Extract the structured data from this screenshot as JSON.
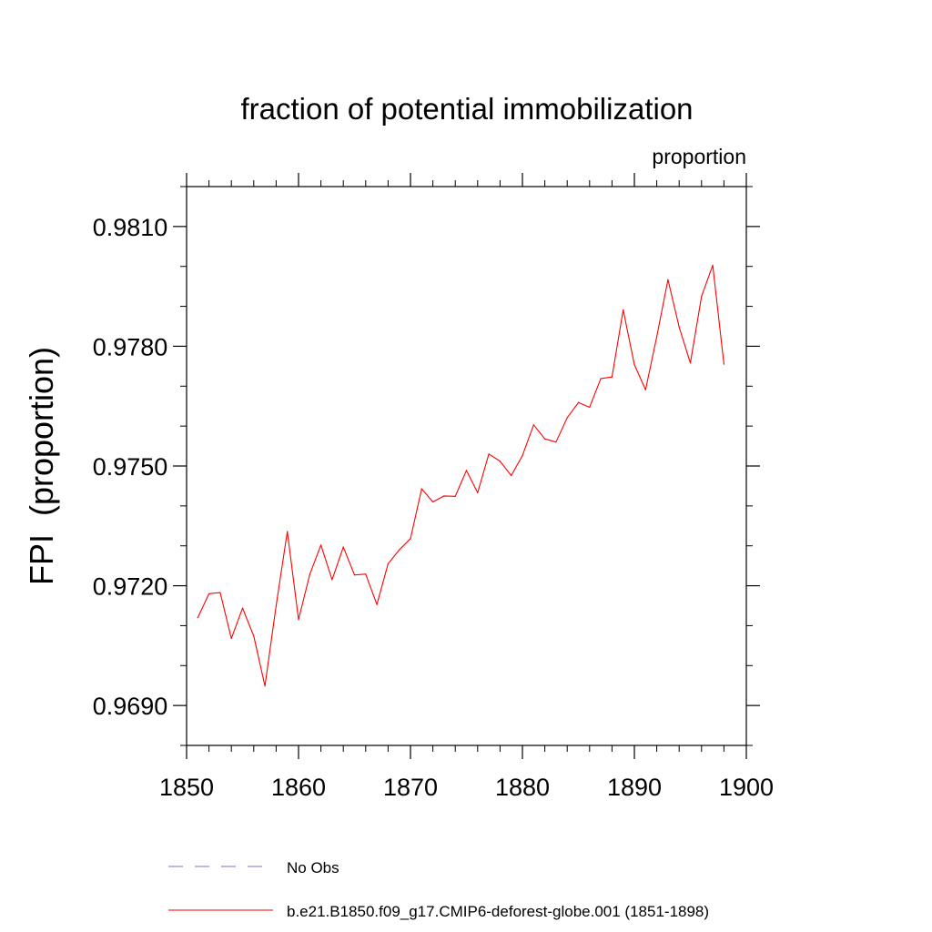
{
  "chart_data": {
    "type": "line",
    "title": "fraction of potential immobilization",
    "units_label": "proportion",
    "ylabel": "FPI  (proportion)",
    "xlabel": "",
    "xlim": [
      1850,
      1900
    ],
    "ylim": [
      0.968,
      0.982
    ],
    "x_ticks": [
      1850,
      1860,
      1870,
      1880,
      1890,
      1900
    ],
    "x_tick_labels": [
      "1850",
      "1860",
      "1870",
      "1880",
      "1890",
      "1900"
    ],
    "x_minor_step": 2,
    "y_ticks": [
      0.969,
      0.972,
      0.975,
      0.978,
      0.981
    ],
    "y_tick_labels": [
      "0.9690",
      "0.9720",
      "0.9750",
      "0.9780",
      "0.9810"
    ],
    "y_minor_step": 0.001,
    "grid": false,
    "legend_position": "bottom-left",
    "series": [
      {
        "name": "No Obs",
        "legend_label": "No Obs",
        "color": "#7b6cc4",
        "dash": "dashed",
        "x": [],
        "values": []
      },
      {
        "name": "b.e21.B1850.f09_g17.CMIP6-deforest-globe.001",
        "legend_label": "b.e21.B1850.f09_g17.CMIP6-deforest-globe.001 (1851-1898)",
        "color": "#ff0000",
        "dash": "solid",
        "x": [
          1851,
          1852,
          1853,
          1854,
          1855,
          1856,
          1857,
          1858,
          1859,
          1860,
          1861,
          1862,
          1863,
          1864,
          1865,
          1866,
          1867,
          1868,
          1869,
          1870,
          1871,
          1872,
          1873,
          1874,
          1875,
          1876,
          1877,
          1878,
          1879,
          1880,
          1881,
          1882,
          1883,
          1884,
          1885,
          1886,
          1887,
          1888,
          1889,
          1890,
          1891,
          1892,
          1893,
          1894,
          1895,
          1896,
          1897,
          1898
        ],
        "values": [
          0.9712,
          0.9718,
          0.97183,
          0.97068,
          0.97144,
          0.97074,
          0.96949,
          0.9715,
          0.97336,
          0.97115,
          0.97228,
          0.97302,
          0.97215,
          0.97297,
          0.97227,
          0.97229,
          0.97153,
          0.97255,
          0.9729,
          0.97318,
          0.97443,
          0.9741,
          0.97425,
          0.97424,
          0.97489,
          0.97433,
          0.9753,
          0.97512,
          0.97476,
          0.97526,
          0.97603,
          0.97568,
          0.9756,
          0.97621,
          0.97659,
          0.97647,
          0.97719,
          0.97723,
          0.97891,
          0.97754,
          0.97691,
          0.97824,
          0.97967,
          0.97848,
          0.97758,
          0.97925,
          0.98003,
          0.97755
        ]
      }
    ]
  }
}
